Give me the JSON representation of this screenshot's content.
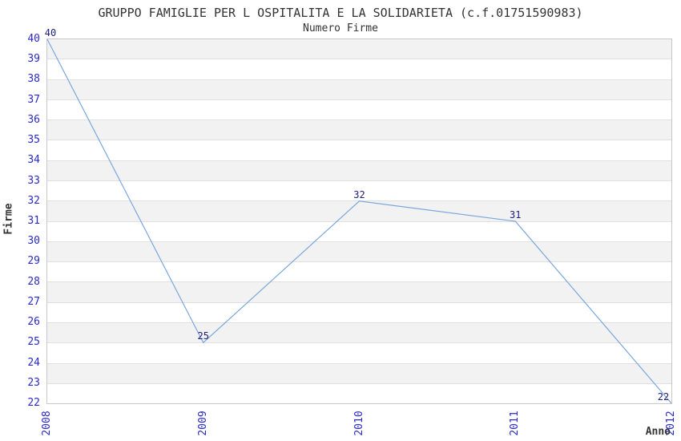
{
  "page": {
    "title": "GRUPPO FAMIGLIE PER L OSPITALITA E LA SOLIDARIETA (c.f.01751590983)",
    "subtitle": "Numero Firme"
  },
  "chart_data": {
    "type": "line",
    "title": "GRUPPO FAMIGLIE PER L OSPITALITA E LA SOLIDARIETA (c.f.01751590983)",
    "subtitle": "Numero Firme",
    "xlabel": "Anno",
    "ylabel": "Firme",
    "categories": [
      "2008",
      "2009",
      "2010",
      "2011",
      "2012"
    ],
    "series": [
      {
        "name": "Firme",
        "values": [
          40,
          25,
          32,
          31,
          22
        ]
      }
    ],
    "point_labels": [
      "40",
      "25",
      "32",
      "31",
      "22"
    ],
    "ylim": [
      22,
      40
    ],
    "y_ticks": [
      22,
      23,
      24,
      25,
      26,
      27,
      28,
      29,
      30,
      31,
      32,
      33,
      34,
      35,
      36,
      37,
      38,
      39,
      40
    ],
    "legend": "none",
    "grid": {
      "horizontal_gridlines": true,
      "alternating_bands": true,
      "band_unit": 1
    },
    "colors": {
      "line": "#7aa7dd",
      "tick_label": "#2929cc",
      "point_label": "#20207d",
      "band": "#f2f2f2",
      "gridline": "#e0e0e0",
      "frame": "#c9c9c9",
      "text": "#333333",
      "background": "#ffffff"
    }
  }
}
